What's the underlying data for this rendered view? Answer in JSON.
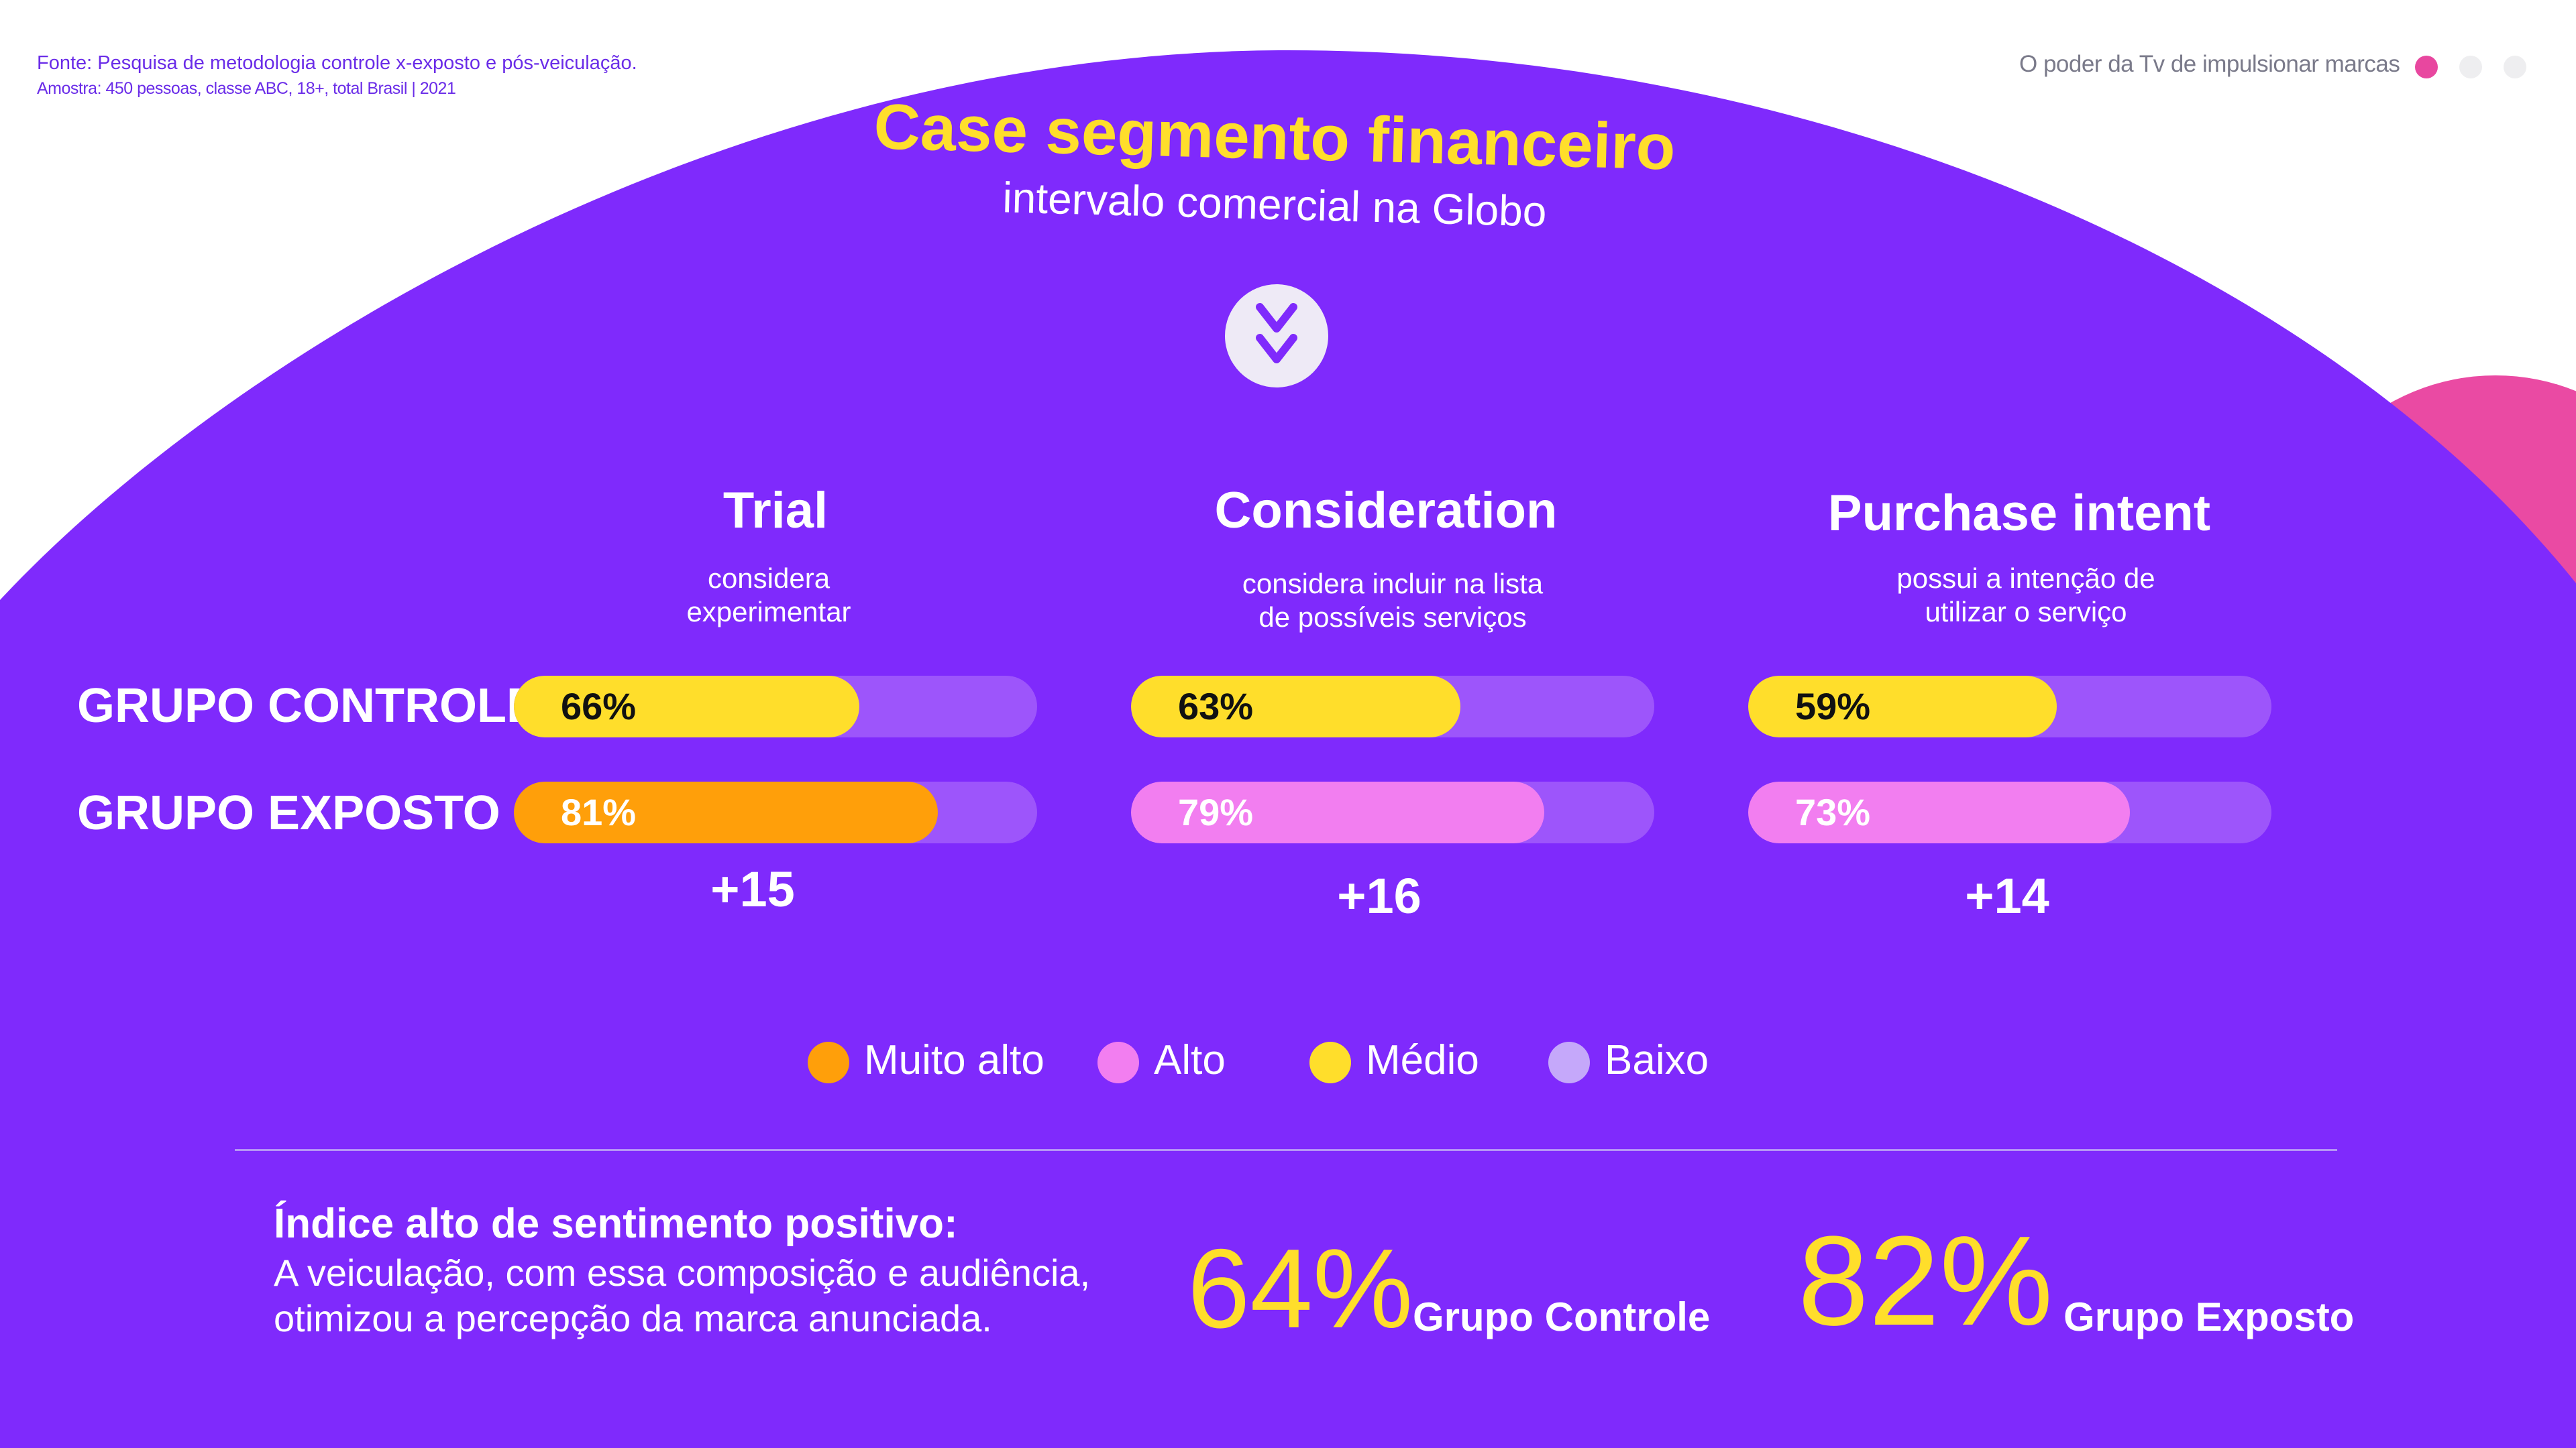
{
  "header": {
    "source_line1": "Fonte: Pesquisa de metodologia controle x-exposto e pós-veiculação.",
    "source_line2": "Amostra: 450 pessoas, classe ABC, 18+, total Brasil | 2021",
    "deck_title": "O poder da Tv de impulsionar marcas",
    "page_dots_colors": [
      "#e8479f",
      "#eeeef0",
      "#eeeef0"
    ]
  },
  "hero": {
    "title": "Case segmento financeiro",
    "subtitle": "intervalo comercial na  Globo",
    "logo_icon": "globo-chevron-logo-icon"
  },
  "chart_data": {
    "type": "bar",
    "orientation": "horizontal",
    "xlim": [
      0,
      100
    ],
    "categories": [
      "Trial",
      "Consideration",
      "Purchase intent"
    ],
    "category_subtitles": [
      [
        "considera",
        "experimentar"
      ],
      [
        "considera incluir na lista",
        "de possíveis serviços"
      ],
      [
        "possui a intenção de",
        "utilizar o serviço"
      ]
    ],
    "series": [
      {
        "name": "GRUPO CONTROLE",
        "values": [
          66,
          63,
          59
        ],
        "labels": [
          "66%",
          "63%",
          "59%"
        ],
        "colors": [
          "#ffde2b",
          "#ffde2b",
          "#ffde2b"
        ]
      },
      {
        "name": "GRUPO EXPOSTO",
        "values": [
          81,
          79,
          73
        ],
        "labels": [
          "81%",
          "79%",
          "73%"
        ],
        "colors": [
          "#ff9f0a",
          "#f27ef0",
          "#f27ef0"
        ]
      }
    ],
    "deltas": [
      "+15",
      "+16",
      "+14"
    ],
    "track_color": "#9d55fb",
    "legend": [
      {
        "label": "Muito alto",
        "color": "#ff9f0a"
      },
      {
        "label": "Alto",
        "color": "#f27ef0"
      },
      {
        "label": "Médio",
        "color": "#ffde2b"
      },
      {
        "label": "Baixo",
        "color": "#c5a8fa"
      }
    ],
    "legend_position": "bottom-center"
  },
  "summary": {
    "heading": "Índice alto de sentimento positivo:",
    "line1": "A veiculação, com essa composição e audiência,",
    "line2": "otimizou a percepção da marca anunciada.",
    "stats": [
      {
        "value": "64%",
        "label": "Grupo Controle"
      },
      {
        "value": "82%",
        "label": "Grupo Exposto"
      }
    ]
  },
  "colors": {
    "purple_bg": "#7f2afc",
    "accent_yellow": "#ffde2b",
    "accent_pink": "#e8479f"
  }
}
